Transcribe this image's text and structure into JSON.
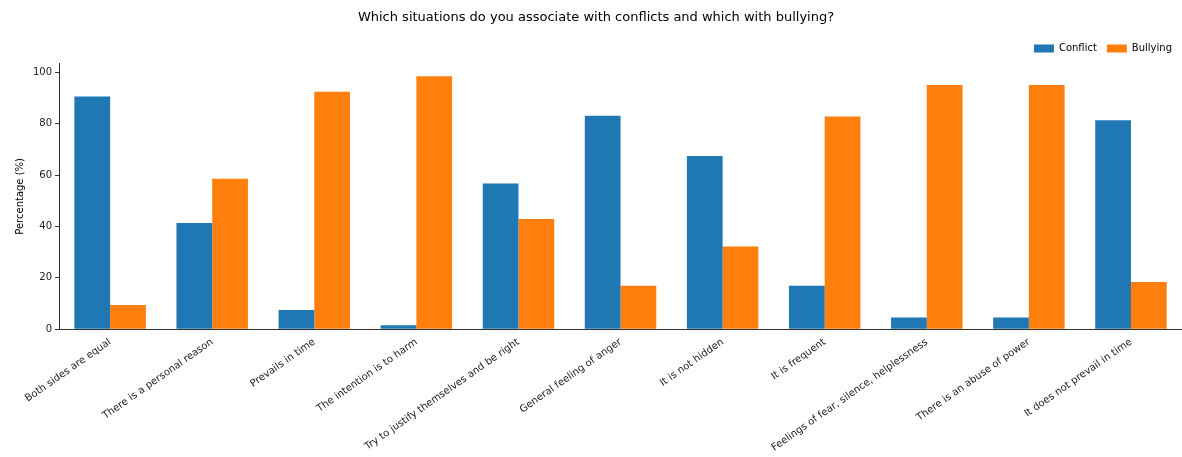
{
  "chart_data": {
    "type": "bar",
    "title": "Which situations do you associate with conflicts and which with bullying?",
    "ylabel": "Percentage (%)",
    "categories": [
      "Both sides are equal",
      "There is a personal reason",
      "Prevails in time",
      "The intention is to harm",
      "Try to justify themselves and be right",
      "General feeling of anger",
      "It is not hidden",
      "It is frequent",
      "Feelings of fear, silence, helplessness",
      "There is an abuse of power",
      "It does not prevail in time"
    ],
    "series": [
      {
        "name": "Conflict",
        "color": "#1f77b4",
        "values": [
          90.7,
          41.4,
          7.5,
          1.5,
          56.8,
          83.2,
          67.5,
          16.9,
          4.5,
          4.5,
          81.4
        ]
      },
      {
        "name": "Bullying",
        "color": "#ff7f0e",
        "values": [
          9.4,
          58.6,
          92.5,
          98.6,
          42.9,
          16.9,
          32.2,
          82.9,
          95.2,
          95.2,
          18.4
        ]
      }
    ],
    "ylim": [
      0,
      103.5
    ],
    "yticks": [
      0,
      20,
      40,
      60,
      80,
      100
    ],
    "grid": false,
    "legend": "top right"
  }
}
